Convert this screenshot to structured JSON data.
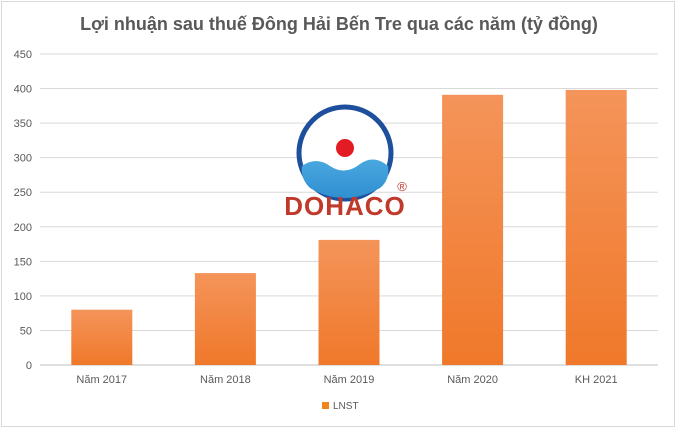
{
  "chart_data": {
    "type": "bar",
    "title": "Lợi nhuận sau thuế Đông Hải Bến Tre qua các năm (tỷ đồng)",
    "categories": [
      "Năm 2017",
      "Năm 2018",
      "Năm 2019",
      "Năm 2020",
      "KH 2021"
    ],
    "series": [
      {
        "name": "LNST",
        "values": [
          80,
          133,
          181,
          391,
          398
        ]
      }
    ],
    "ylim": [
      0,
      450
    ],
    "yticks": [
      0,
      50,
      100,
      150,
      200,
      250,
      300,
      350,
      400,
      450
    ],
    "grid": true,
    "legend": "bottom",
    "bar_color": "#f4821f"
  },
  "logo": {
    "text": "DOHACO",
    "registered": "®"
  }
}
